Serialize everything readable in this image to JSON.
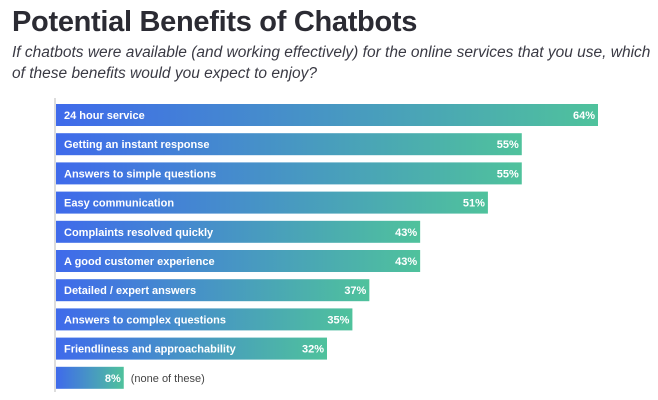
{
  "chart_data": {
    "type": "bar",
    "orientation": "horizontal",
    "title": "Potential Benefits of Chatbots",
    "subtitle": "If chatbots were available (and working effectively) for the online services that you use, which of these benefits would you expect to enjoy?",
    "categories": [
      "24 hour service",
      "Getting an instant response",
      "Answers to simple questions",
      "Easy communication",
      "Complaints resolved quickly",
      "A good customer experience",
      "Detailed / expert answers",
      "Answers to complex questions",
      "Friendliness and approachability",
      "(none of these)"
    ],
    "values": [
      64,
      55,
      55,
      51,
      43,
      43,
      37,
      35,
      32,
      8
    ],
    "value_labels": [
      "64%",
      "55%",
      "55%",
      "51%",
      "43%",
      "43%",
      "37%",
      "35%",
      "32%",
      "8%"
    ],
    "xlim": [
      0,
      64
    ],
    "grid": false,
    "colors": {
      "gradient_start": "#3f6aeb",
      "gradient_end": "#4fc29c"
    }
  }
}
